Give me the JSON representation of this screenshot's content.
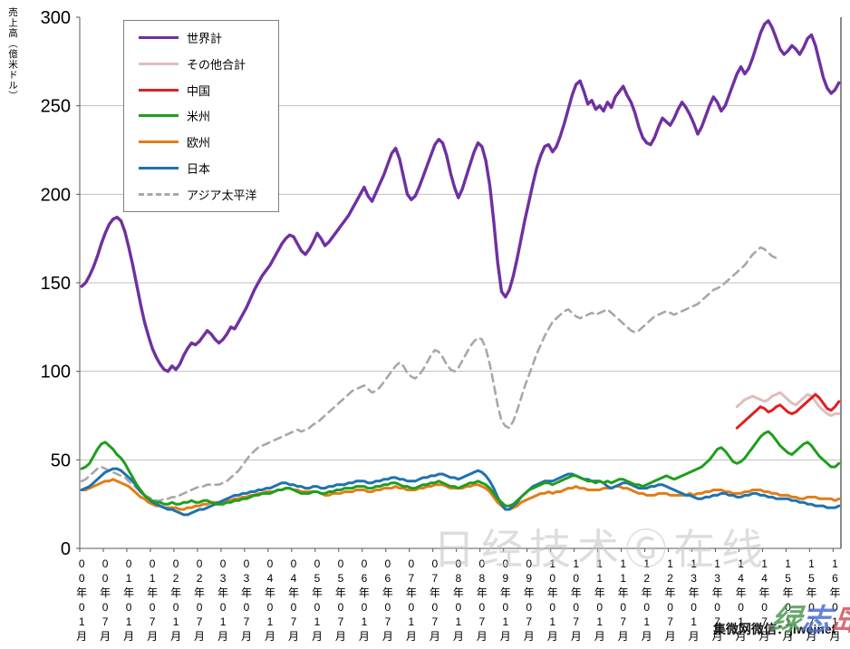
{
  "page": {
    "background": "#ffffff"
  },
  "watermarks": {
    "center": "日经技术Ⓖ在线",
    "bottom_right_black": "集微网微信：jiweinet",
    "bottom_right_colored": [
      "绿",
      "志",
      "岛"
    ]
  },
  "chart_data": {
    "type": "line",
    "title": "",
    "ylabel": "売上高（億米ドル）",
    "ylim": [
      0,
      300
    ],
    "yticks": [
      300,
      250,
      200,
      150,
      100,
      50,
      0
    ],
    "grid": "horizontal-gridlines-every-50",
    "legend_position": "top-left-box",
    "x_unit": "month",
    "x_start": "2000-01",
    "x_end": "2016-02",
    "x_tick_step": 6,
    "x_tick_labels": [
      "00年01月",
      "00年07月",
      "01年01月",
      "01年07月",
      "02年01月",
      "02年07月",
      "03年01月",
      "03年07月",
      "04年01月",
      "04年07月",
      "05年01月",
      "05年07月",
      "06年01月",
      "06年07月",
      "07年01月",
      "07年07月",
      "08年01月",
      "08年07月",
      "09年01月",
      "09年07月",
      "10年01月",
      "10年07月",
      "11年01月",
      "11年07月",
      "12年01月",
      "12年07月",
      "13年01月",
      "13年07月",
      "14年01月",
      "14年07月",
      "15年01月",
      "15年07月",
      "16年01月"
    ],
    "axis_color": "#595959",
    "gridline_color": "#bfbfbf",
    "series": [
      {
        "key": "world",
        "name": "世界計",
        "color": "#7030A0",
        "dash": "solid",
        "width": 3.4,
        "start": 0,
        "values": [
          148,
          150,
          154,
          159,
          165,
          172,
          178,
          183,
          186,
          187,
          185,
          179,
          170,
          160,
          149,
          138,
          128,
          120,
          113,
          108,
          104,
          101,
          100,
          103,
          101,
          104,
          109,
          113,
          116,
          115,
          117,
          120,
          123,
          121,
          118,
          116,
          118,
          121,
          125,
          124,
          128,
          132,
          136,
          141,
          146,
          150,
          154,
          157,
          160,
          164,
          168,
          172,
          175,
          177,
          176,
          172,
          168,
          166,
          169,
          173,
          178,
          175,
          171,
          173,
          176,
          179,
          182,
          185,
          188,
          192,
          196,
          200,
          204,
          199,
          196,
          201,
          206,
          211,
          217,
          223,
          226,
          220,
          210,
          200,
          197,
          199,
          204,
          210,
          216,
          222,
          228,
          231,
          229,
          222,
          212,
          204,
          198,
          203,
          210,
          217,
          224,
          229,
          227,
          219,
          205,
          185,
          162,
          145,
          142,
          146,
          154,
          164,
          175,
          186,
          196,
          206,
          215,
          222,
          227,
          228,
          224,
          227,
          233,
          240,
          248,
          256,
          262,
          264,
          258,
          251,
          253,
          248,
          250,
          247,
          252,
          249,
          255,
          258,
          261,
          256,
          252,
          246,
          238,
          232,
          229,
          228,
          232,
          238,
          243,
          241,
          239,
          243,
          248,
          252,
          249,
          245,
          240,
          234,
          238,
          244,
          250,
          255,
          252,
          247,
          250,
          256,
          262,
          268,
          272,
          268,
          271,
          277,
          284,
          291,
          296,
          298,
          294,
          288,
          282,
          279,
          281,
          284,
          282,
          279,
          283,
          288,
          290,
          284,
          275,
          266,
          260,
          257,
          259,
          263
        ]
      },
      {
        "key": "others",
        "name": "その他合計",
        "color": "#E0BDBC",
        "dash": "solid",
        "width": 3,
        "start": 167,
        "values": [
          80,
          82,
          84,
          85,
          86,
          85,
          84,
          83,
          84,
          86,
          87,
          88,
          86,
          84,
          82,
          81,
          83,
          85,
          87,
          86,
          83,
          80,
          78,
          76,
          75,
          76,
          76
        ]
      },
      {
        "key": "china",
        "name": "中国",
        "color": "#E02020",
        "dash": "solid",
        "width": 3,
        "start": 167,
        "values": [
          68,
          70,
          72,
          74,
          76,
          78,
          80,
          79,
          77,
          78,
          80,
          81,
          79,
          77,
          76,
          77,
          79,
          81,
          83,
          85,
          87,
          85,
          82,
          79,
          78,
          80,
          83
        ]
      },
      {
        "key": "americas",
        "name": "米州",
        "color": "#1F9E1F",
        "dash": "solid",
        "width": 3,
        "start": 0,
        "values": [
          45,
          46,
          48,
          52,
          56,
          59,
          60,
          58,
          56,
          53,
          51,
          48,
          44,
          40,
          36,
          33,
          30,
          28,
          27,
          26,
          26,
          25,
          25,
          26,
          25,
          25,
          26,
          26,
          27,
          26,
          26,
          27,
          27,
          26,
          25,
          25,
          25,
          26,
          26,
          27,
          27,
          28,
          28,
          29,
          30,
          30,
          31,
          31,
          31,
          32,
          33,
          33,
          34,
          34,
          33,
          32,
          31,
          31,
          31,
          32,
          32,
          31,
          31,
          32,
          32,
          33,
          33,
          34,
          34,
          34,
          35,
          35,
          35,
          34,
          34,
          35,
          35,
          36,
          36,
          37,
          37,
          36,
          35,
          35,
          34,
          34,
          35,
          36,
          36,
          37,
          37,
          38,
          37,
          36,
          35,
          35,
          34,
          35,
          36,
          37,
          37,
          38,
          37,
          36,
          34,
          31,
          28,
          26,
          24,
          24,
          25,
          27,
          29,
          31,
          33,
          34,
          35,
          36,
          37,
          37,
          36,
          37,
          38,
          39,
          40,
          41,
          41,
          40,
          39,
          38,
          38,
          37,
          38,
          37,
          38,
          37,
          38,
          39,
          39,
          38,
          37,
          36,
          36,
          35,
          36,
          37,
          38,
          39,
          40,
          41,
          40,
          39,
          40,
          41,
          42,
          43,
          44,
          45,
          46,
          48,
          50,
          53,
          56,
          57,
          55,
          52,
          49,
          48,
          49,
          51,
          54,
          57,
          60,
          63,
          65,
          66,
          64,
          61,
          58,
          56,
          54,
          53,
          55,
          57,
          59,
          60,
          58,
          55,
          52,
          50,
          48,
          46,
          46,
          48
        ]
      },
      {
        "key": "europe",
        "name": "欧州",
        "color": "#E07E18",
        "dash": "solid",
        "width": 3,
        "start": 0,
        "values": [
          33,
          33,
          34,
          35,
          36,
          37,
          38,
          38,
          39,
          38,
          37,
          36,
          35,
          33,
          31,
          29,
          28,
          26,
          25,
          24,
          24,
          23,
          23,
          23,
          23,
          22,
          22,
          23,
          23,
          24,
          24,
          25,
          25,
          26,
          26,
          26,
          26,
          27,
          27,
          28,
          28,
          29,
          29,
          30,
          30,
          31,
          31,
          32,
          32,
          32,
          33,
          33,
          34,
          34,
          33,
          33,
          32,
          32,
          32,
          32,
          32,
          31,
          30,
          30,
          31,
          31,
          31,
          32,
          32,
          32,
          33,
          33,
          33,
          32,
          32,
          33,
          33,
          34,
          34,
          34,
          35,
          34,
          34,
          33,
          33,
          33,
          34,
          34,
          35,
          35,
          36,
          36,
          36,
          35,
          34,
          34,
          34,
          34,
          35,
          35,
          36,
          36,
          35,
          34,
          32,
          29,
          26,
          24,
          22,
          22,
          23,
          24,
          26,
          27,
          28,
          29,
          30,
          31,
          31,
          32,
          31,
          32,
          32,
          33,
          34,
          34,
          35,
          34,
          34,
          33,
          33,
          33,
          33,
          34,
          34,
          34,
          35,
          35,
          34,
          34,
          33,
          32,
          31,
          31,
          30,
          30,
          30,
          31,
          31,
          31,
          30,
          30,
          30,
          30,
          30,
          31,
          30,
          31,
          31,
          32,
          32,
          33,
          33,
          33,
          32,
          32,
          31,
          31,
          31,
          32,
          32,
          33,
          33,
          33,
          32,
          32,
          31,
          31,
          30,
          30,
          30,
          29,
          29,
          28,
          28,
          29,
          29,
          29,
          28,
          28,
          28,
          28,
          27,
          28
        ]
      },
      {
        "key": "japan",
        "name": "日本",
        "color": "#1F72B0",
        "dash": "solid",
        "width": 3,
        "start": 0,
        "values": [
          33,
          34,
          35,
          37,
          39,
          41,
          43,
          44,
          45,
          45,
          44,
          42,
          40,
          38,
          35,
          32,
          30,
          28,
          26,
          25,
          24,
          23,
          22,
          22,
          21,
          20,
          19,
          19,
          20,
          21,
          22,
          22,
          23,
          24,
          25,
          26,
          27,
          28,
          29,
          30,
          30,
          31,
          31,
          32,
          32,
          33,
          33,
          34,
          34,
          35,
          36,
          37,
          37,
          36,
          36,
          35,
          35,
          34,
          34,
          35,
          35,
          34,
          34,
          35,
          35,
          36,
          36,
          36,
          37,
          37,
          38,
          38,
          38,
          37,
          37,
          38,
          38,
          39,
          39,
          40,
          40,
          39,
          39,
          38,
          38,
          38,
          39,
          40,
          40,
          41,
          41,
          42,
          42,
          41,
          40,
          40,
          39,
          40,
          41,
          42,
          43,
          44,
          43,
          41,
          38,
          34,
          29,
          25,
          22,
          22,
          24,
          26,
          29,
          31,
          33,
          35,
          36,
          37,
          38,
          38,
          38,
          39,
          40,
          41,
          42,
          42,
          41,
          40,
          39,
          39,
          38,
          38,
          38,
          37,
          35,
          34,
          35,
          36,
          37,
          37,
          36,
          35,
          34,
          34,
          34,
          35,
          35,
          36,
          36,
          35,
          34,
          33,
          32,
          31,
          30,
          30,
          29,
          28,
          28,
          29,
          29,
          30,
          30,
          31,
          31,
          30,
          30,
          29,
          29,
          30,
          30,
          31,
          31,
          30,
          30,
          29,
          29,
          28,
          28,
          28,
          28,
          27,
          27,
          26,
          26,
          25,
          25,
          24,
          24,
          24,
          23,
          23,
          23,
          24
        ]
      },
      {
        "key": "asia_pacific",
        "name": "アジア太平洋",
        "color": "#A8A8A8",
        "dash": "dashed",
        "width": 2.6,
        "start": 0,
        "values": [
          38,
          39,
          41,
          43,
          45,
          46,
          45,
          44,
          43,
          42,
          41,
          40,
          38,
          36,
          34,
          32,
          30,
          29,
          28,
          27,
          27,
          28,
          28,
          29,
          29,
          30,
          31,
          32,
          33,
          34,
          35,
          35,
          36,
          36,
          36,
          36,
          37,
          38,
          40,
          42,
          44,
          47,
          50,
          53,
          55,
          57,
          58,
          59,
          60,
          61,
          62,
          63,
          64,
          65,
          66,
          67,
          66,
          67,
          68,
          70,
          71,
          73,
          75,
          77,
          79,
          81,
          83,
          85,
          87,
          89,
          90,
          91,
          92,
          90,
          88,
          89,
          91,
          94,
          97,
          100,
          103,
          105,
          103,
          99,
          97,
          96,
          98,
          101,
          105,
          109,
          112,
          111,
          108,
          104,
          101,
          100,
          102,
          106,
          110,
          114,
          117,
          119,
          118,
          113,
          104,
          93,
          81,
          72,
          69,
          68,
          72,
          78,
          85,
          92,
          98,
          104,
          110,
          115,
          120,
          124,
          128,
          130,
          132,
          134,
          135,
          133,
          131,
          130,
          131,
          132,
          133,
          132,
          133,
          134,
          135,
          133,
          131,
          129,
          127,
          125,
          123,
          122,
          123,
          125,
          127,
          129,
          131,
          132,
          133,
          134,
          133,
          132,
          133,
          134,
          135,
          136,
          137,
          138,
          140,
          142,
          144,
          146,
          147,
          148,
          150,
          152,
          154,
          156,
          158,
          160,
          163,
          166,
          168,
          170,
          169,
          167,
          165,
          164
        ]
      }
    ]
  }
}
